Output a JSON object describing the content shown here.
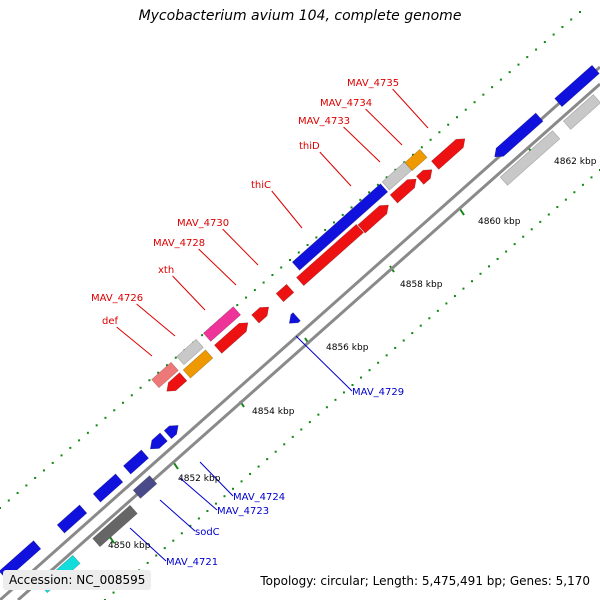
{
  "title": "Mycobacterium avium 104, complete genome",
  "footer": {
    "accession": "Accession: NC_008595",
    "stats": "Topology: circular; Length: 5,475,491 bp; Genes: 5,170"
  },
  "colors": {
    "forward_red": "#ee1111",
    "reverse_blue": "#1111dd",
    "gray": "#c8c8c8",
    "orange": "#ee9900",
    "pink": "#ee3399",
    "salmon": "#ee7777",
    "cyan": "#11dddd",
    "slate": "#4a4a8a",
    "darkgray": "#666666",
    "tick_green": "#118811",
    "label_red": "#dd0000",
    "label_blue": "#0000cc"
  },
  "ruler": {
    "labels": [
      "4850 kbp",
      "4852 kbp",
      "4854 kbp",
      "4856 kbp",
      "4858 kbp",
      "4860 kbp",
      "4862 kbp"
    ]
  },
  "gene_labels": {
    "top": [
      "def",
      "MAV_4726",
      "xth",
      "MAV_4728",
      "MAV_4730",
      "thiC",
      "thiD",
      "MAV_4733",
      "MAV_4734",
      "MAV_4735"
    ],
    "bottom": [
      "MAV_4721",
      "sodC",
      "MAV_4723",
      "MAV_4724",
      "MAV_4729"
    ]
  }
}
